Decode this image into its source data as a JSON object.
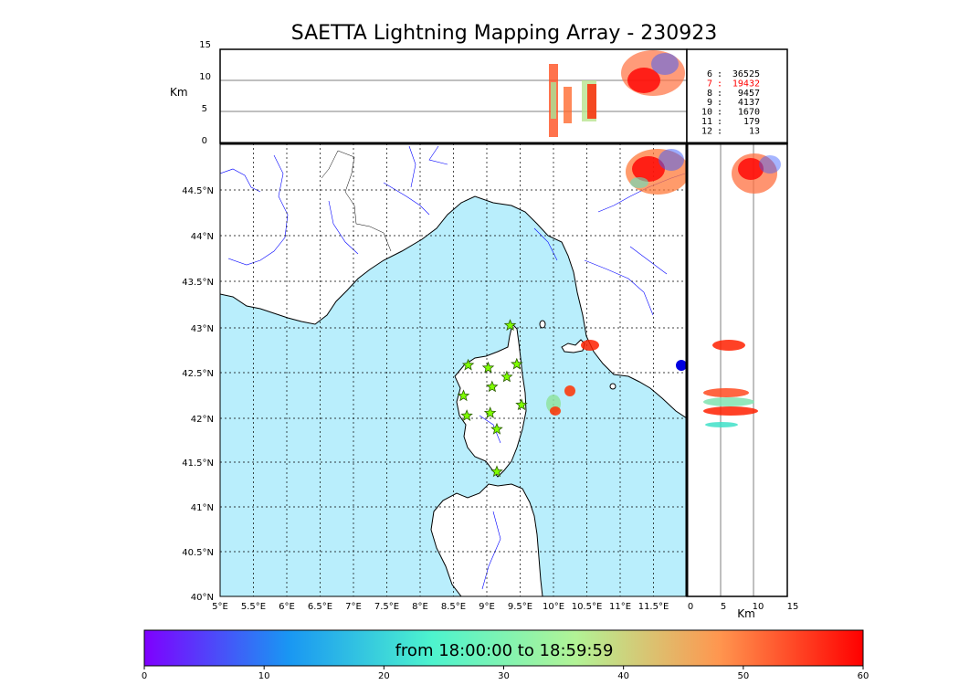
{
  "title": "SAETTA Lightning Mapping Array - 230923",
  "altitude_axis": {
    "label": "Km",
    "ticks": [
      "15",
      "10",
      "5",
      "0"
    ]
  },
  "side_axis": {
    "label": "Km",
    "ticks": [
      "0",
      "5",
      "10",
      "15"
    ]
  },
  "lat_ticks": [
    "44.5°N",
    "44°N",
    "43.5°N",
    "43°N",
    "42.5°N",
    "42°N",
    "41.5°N",
    "41°N",
    "40.5°N",
    "40°N"
  ],
  "lon_ticks": [
    "5°E",
    "5.5°E",
    "6°E",
    "6.5°E",
    "7°E",
    "7.5°E",
    "8°E",
    "8.5°E",
    "9°E",
    "9.5°E",
    "10°E",
    "10.5°E",
    "11°E",
    "11.5°E"
  ],
  "station_counts": [
    {
      "stations": "6",
      "count": "36525",
      "color": "#000000"
    },
    {
      "stations": "7",
      "count": "19432",
      "color": "#ff0000"
    },
    {
      "stations": "8",
      "count": "9457",
      "color": "#000000"
    },
    {
      "stations": "9",
      "count": "4137",
      "color": "#000000"
    },
    {
      "stations": "10",
      "count": "1670",
      "color": "#000000"
    },
    {
      "stations": "11",
      "count": "179",
      "color": "#000000"
    },
    {
      "stations": "12",
      "count": "13",
      "color": "#000000"
    }
  ],
  "colorbar": {
    "label": "from 18:00:00 to 18:59:59",
    "ticks": [
      "0",
      "10",
      "20",
      "30",
      "40",
      "50",
      "60"
    ],
    "colors": [
      "#7f00ff",
      "#1996f3",
      "#4df3ce",
      "#b2f396",
      "#ff964f",
      "#ff0000"
    ]
  },
  "colors": {
    "sea": "#b9eefc",
    "land": "#ffffff",
    "rivers": "#0000ff",
    "station_marker": "#7fff00"
  },
  "stations": [
    {
      "lon": 9.35,
      "lat": 43.0
    },
    {
      "lon": 8.72,
      "lat": 42.56
    },
    {
      "lon": 9.02,
      "lat": 42.53
    },
    {
      "lon": 9.45,
      "lat": 42.57
    },
    {
      "lon": 9.3,
      "lat": 42.43
    },
    {
      "lon": 9.08,
      "lat": 42.32
    },
    {
      "lon": 8.65,
      "lat": 42.22
    },
    {
      "lon": 9.52,
      "lat": 42.12
    },
    {
      "lon": 8.7,
      "lat": 42.0
    },
    {
      "lon": 9.05,
      "lat": 42.03
    },
    {
      "lon": 9.15,
      "lat": 41.85
    },
    {
      "lon": 9.15,
      "lat": 41.38
    }
  ]
}
